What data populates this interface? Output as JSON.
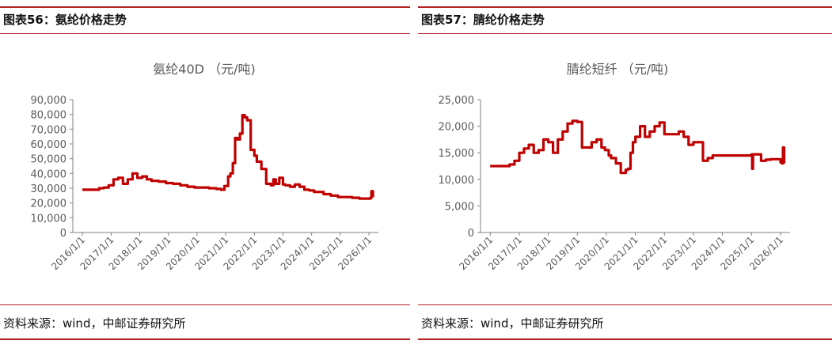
{
  "panels": [
    {
      "figure_title": "图表56：氨纶价格走势",
      "source": "资料来源：wind，中邮证券研究所",
      "chart_data": {
        "type": "line",
        "title": "氨纶40D （元/吨)",
        "xlabel": "",
        "ylabel": "",
        "ylim": [
          0,
          90000
        ],
        "yticks": [
          0,
          10000,
          20000,
          30000,
          40000,
          50000,
          60000,
          70000,
          80000,
          90000
        ],
        "ytick_labels": [
          "0",
          "10,000",
          "20,000",
          "30,000",
          "40,000",
          "50,000",
          "60,000",
          "70,000",
          "80,000",
          "90,000"
        ],
        "xlim": [
          "2015-09-01",
          "2026-05-01"
        ],
        "xticks": [
          "2016-01-01",
          "2017-01-01",
          "2018-01-01",
          "2019-01-01",
          "2020-01-01",
          "2021-01-01",
          "2022-01-01",
          "2023-01-01",
          "2024-01-01",
          "2025-01-01",
          "2026-01-01"
        ],
        "xtick_labels": [
          "2016/1/1",
          "2017/1/1",
          "2018/1/1",
          "2019/1/1",
          "2020/1/1",
          "2021/1/1",
          "2022/1/1",
          "2023/1/1",
          "2024/1/1",
          "2025/1/1",
          "2026/1/1"
        ],
        "grid": false,
        "line_color": "#c00000",
        "series": [
          {
            "x": [
              "2016-01-01",
              "2016-04-01",
              "2016-08-01",
              "2016-10-01",
              "2016-12-01",
              "2017-02-01",
              "2017-04-01",
              "2017-06-01",
              "2017-08-01",
              "2017-10-01",
              "2017-12-01",
              "2018-02-01",
              "2018-04-01",
              "2018-06-01",
              "2018-09-01",
              "2018-12-01",
              "2019-03-01",
              "2019-06-01",
              "2019-09-01",
              "2019-12-01",
              "2020-03-01",
              "2020-06-01",
              "2020-09-01",
              "2020-11-01",
              "2020-12-15",
              "2021-02-01",
              "2021-03-01",
              "2021-04-01",
              "2021-05-01",
              "2021-06-01",
              "2021-07-01",
              "2021-08-01",
              "2021-09-01",
              "2021-10-01",
              "2021-11-15",
              "2022-01-01",
              "2022-02-01",
              "2022-04-01",
              "2022-06-01",
              "2022-08-01",
              "2022-09-01",
              "2022-10-01",
              "2022-11-15",
              "2023-01-01",
              "2023-02-01",
              "2023-04-01",
              "2023-06-01",
              "2023-08-01",
              "2023-10-01",
              "2023-12-01",
              "2024-02-01",
              "2024-06-01",
              "2024-09-01",
              "2024-12-01",
              "2025-03-01",
              "2025-06-01",
              "2025-09-01",
              "2025-12-01",
              "2026-01-20",
              "2026-02-01",
              "2026-02-20"
            ],
            "values": [
              29000,
              29000,
              30000,
              30500,
              32000,
              36000,
              37000,
              33000,
              36000,
              40000,
              37000,
              38000,
              36000,
              35000,
              34500,
              33500,
              33000,
              32000,
              31000,
              30500,
              30500,
              30000,
              29500,
              29000,
              31500,
              38000,
              40000,
              47000,
              64000,
              63000,
              67000,
              79500,
              78000,
              76000,
              56000,
              52000,
              48000,
              43000,
              33000,
              32000,
              36000,
              33000,
              37000,
              32500,
              32000,
              31000,
              32500,
              31000,
              29000,
              28500,
              27500,
              26000,
              25000,
              24000,
              24000,
              23500,
              23000,
              23000,
              23500,
              28000,
              24000
            ]
          }
        ]
      }
    },
    {
      "figure_title": "图表57：腈纶价格走势",
      "source": "资料来源：wind，中邮证券研究所",
      "chart_data": {
        "type": "line",
        "title": "腈纶短纤 （元/吨)",
        "xlabel": "",
        "ylabel": "",
        "ylim": [
          0,
          25000
        ],
        "yticks": [
          0,
          5000,
          10000,
          15000,
          20000,
          25000
        ],
        "ytick_labels": [
          "0",
          "5,000",
          "10,000",
          "15,000",
          "20,000",
          "25,000"
        ],
        "xlim": [
          "2015-09-01",
          "2026-05-01"
        ],
        "xticks": [
          "2016-01-01",
          "2017-01-01",
          "2018-01-01",
          "2019-01-01",
          "2020-01-01",
          "2021-01-01",
          "2022-01-01",
          "2023-01-01",
          "2024-01-01",
          "2025-01-01",
          "2026-01-01"
        ],
        "xtick_labels": [
          "2016/1/1",
          "2017/1/1",
          "2018/1/1",
          "2019/1/1",
          "2020/1/1",
          "2021/1/1",
          "2022/1/1",
          "2023/1/1",
          "2024/1/1",
          "2025/1/1",
          "2026/1/1"
        ],
        "grid": false,
        "line_color": "#c00000",
        "series": [
          {
            "x": [
              "2016-01-01",
              "2016-06-01",
              "2016-09-01",
              "2016-11-01",
              "2017-01-01",
              "2017-03-01",
              "2017-05-01",
              "2017-07-01",
              "2017-09-01",
              "2017-11-01",
              "2018-01-01",
              "2018-03-01",
              "2018-05-01",
              "2018-07-01",
              "2018-09-01",
              "2018-11-01",
              "2019-01-01",
              "2019-03-01",
              "2019-05-01",
              "2019-07-01",
              "2019-09-01",
              "2019-11-01",
              "2019-12-15",
              "2020-02-01",
              "2020-03-01",
              "2020-05-01",
              "2020-07-01",
              "2020-09-01",
              "2020-10-01",
              "2020-11-01",
              "2020-12-01",
              "2021-01-01",
              "2021-03-01",
              "2021-05-01",
              "2021-07-01",
              "2021-09-01",
              "2021-11-01",
              "2022-01-01",
              "2022-03-01",
              "2022-05-01",
              "2022-07-01",
              "2022-09-01",
              "2022-11-01",
              "2023-01-01",
              "2023-03-01",
              "2023-05-01",
              "2023-07-01",
              "2023-09-01",
              "2023-12-01",
              "2024-03-01",
              "2024-06-01",
              "2024-09-01",
              "2024-12-01",
              "2025-01-01",
              "2025-01-10",
              "2025-01-20",
              "2025-03-01",
              "2025-05-01",
              "2025-07-01",
              "2025-09-01",
              "2025-11-01",
              "2026-01-01",
              "2026-01-20",
              "2026-02-01",
              "2026-02-15"
            ],
            "values": [
              12500,
              12500,
              12800,
              13500,
              15000,
              15800,
              16500,
              15000,
              15500,
              17500,
              17000,
              15000,
              17500,
              19000,
              20500,
              21000,
              20800,
              16000,
              16000,
              17000,
              17500,
              16000,
              15500,
              14500,
              14000,
              13000,
              11200,
              11800,
              12000,
              15000,
              17000,
              18000,
              20000,
              18000,
              19000,
              20000,
              20700,
              18500,
              18500,
              18500,
              19000,
              18000,
              16500,
              17000,
              17000,
              13500,
              14000,
              14500,
              14500,
              14500,
              14500,
              14500,
              14500,
              14700,
              12000,
              14700,
              14700,
              13500,
              13700,
              13800,
              13800,
              13200,
              13000,
              16000,
              13000
            ]
          }
        ]
      }
    }
  ]
}
